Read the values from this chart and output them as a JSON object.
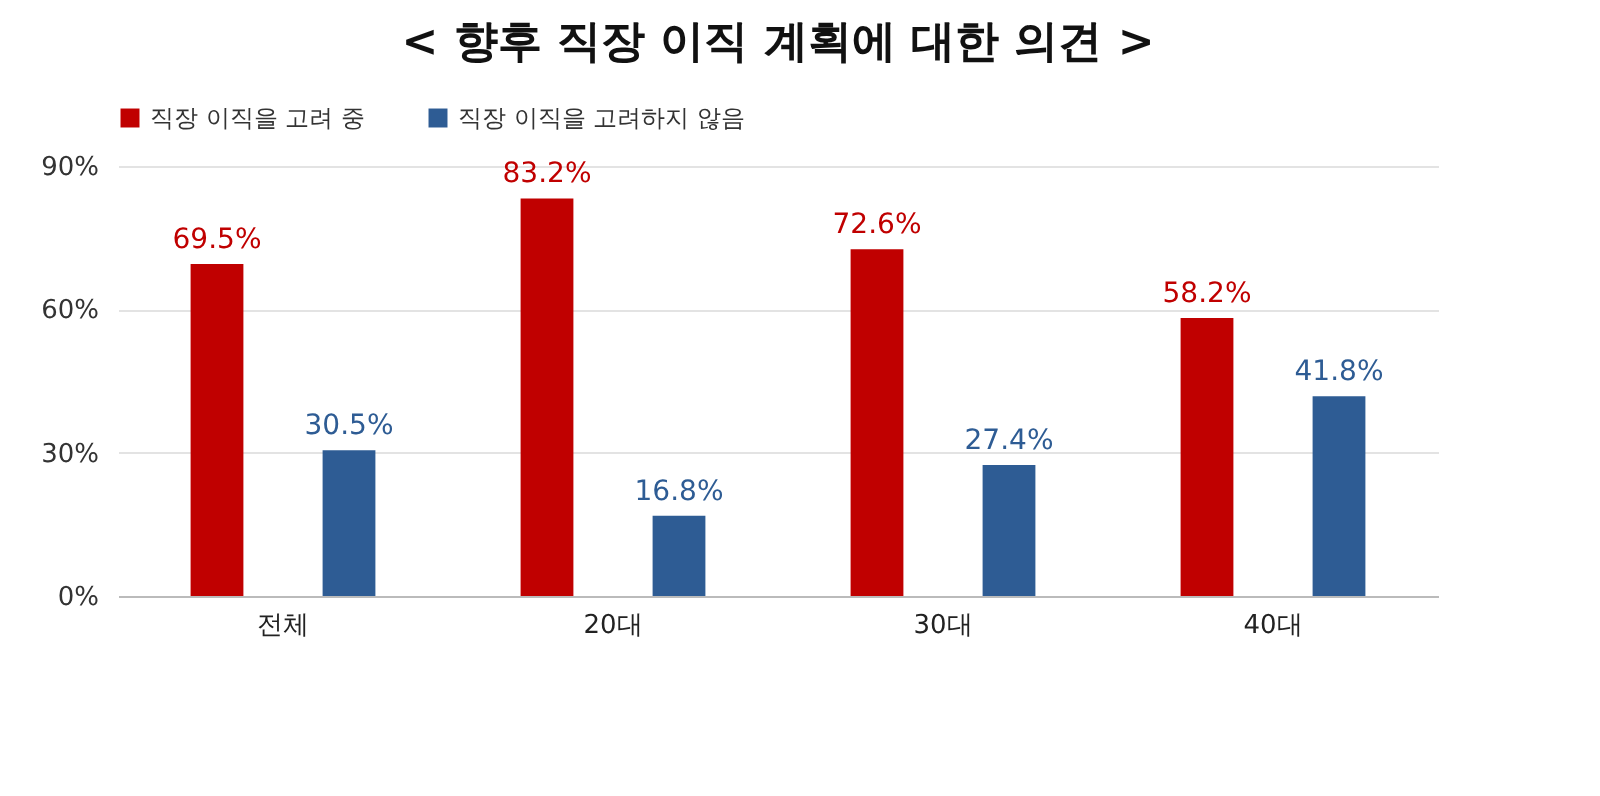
{
  "chart_data": {
    "type": "bar",
    "title": "< 향후 직장 이직 계획에 대한 의견 >",
    "categories": [
      "전체",
      "20대",
      "30대",
      "40대"
    ],
    "series": [
      {
        "name": "직장 이직을 고려 중",
        "color": "#c00000",
        "values": [
          69.5,
          83.2,
          72.6,
          58.2
        ],
        "value_labels": [
          "69.5%",
          "83.2%",
          "72.6%",
          "58.2%"
        ]
      },
      {
        "name": "직장 이직을 고려하지 않음",
        "color": "#2e5c94",
        "values": [
          30.5,
          16.8,
          27.4,
          41.8
        ],
        "value_labels": [
          "30.5%",
          "16.8%",
          "27.4%",
          "41.8%"
        ]
      }
    ],
    "ylim": [
      0,
      90
    ],
    "yticks": [
      {
        "value": 0,
        "label": "0%"
      },
      {
        "value": 30,
        "label": "30%"
      },
      {
        "value": 60,
        "label": "60%"
      },
      {
        "value": 90,
        "label": "90%"
      }
    ],
    "grid": "y",
    "legend": "top"
  }
}
